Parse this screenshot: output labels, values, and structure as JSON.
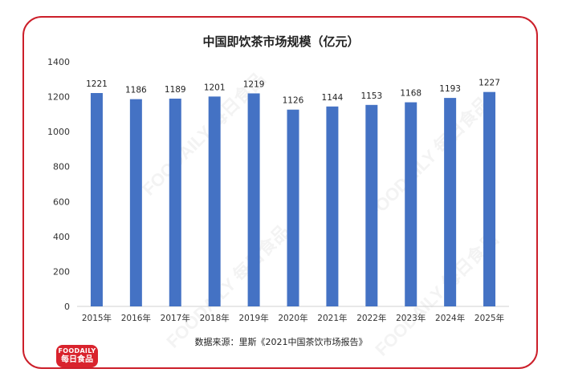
{
  "chart_data": {
    "type": "bar",
    "title": "中国即饮茶市场规模（亿元）",
    "categories": [
      "2015年",
      "2016年",
      "2017年",
      "2018年",
      "2019年",
      "2020年",
      "2021年",
      "2022年",
      "2023年",
      "2024年",
      "2025年"
    ],
    "values": [
      1221,
      1186,
      1189,
      1201,
      1219,
      1126,
      1144,
      1153,
      1168,
      1193,
      1227
    ],
    "ylim": [
      0,
      1400
    ],
    "yticks": [
      0,
      200,
      400,
      600,
      800,
      1000,
      1200,
      1400
    ],
    "grid": false,
    "bar_color": "#4472c4",
    "source": "数据来源：里斯《2021中国茶饮市场报告》"
  },
  "logo": {
    "line1": "FOODAILY",
    "line2": "每日食品",
    "color": "#d9232d"
  },
  "watermark": {
    "text": "FOODAILY 每日食品"
  },
  "border_color": "#cc1f2a"
}
